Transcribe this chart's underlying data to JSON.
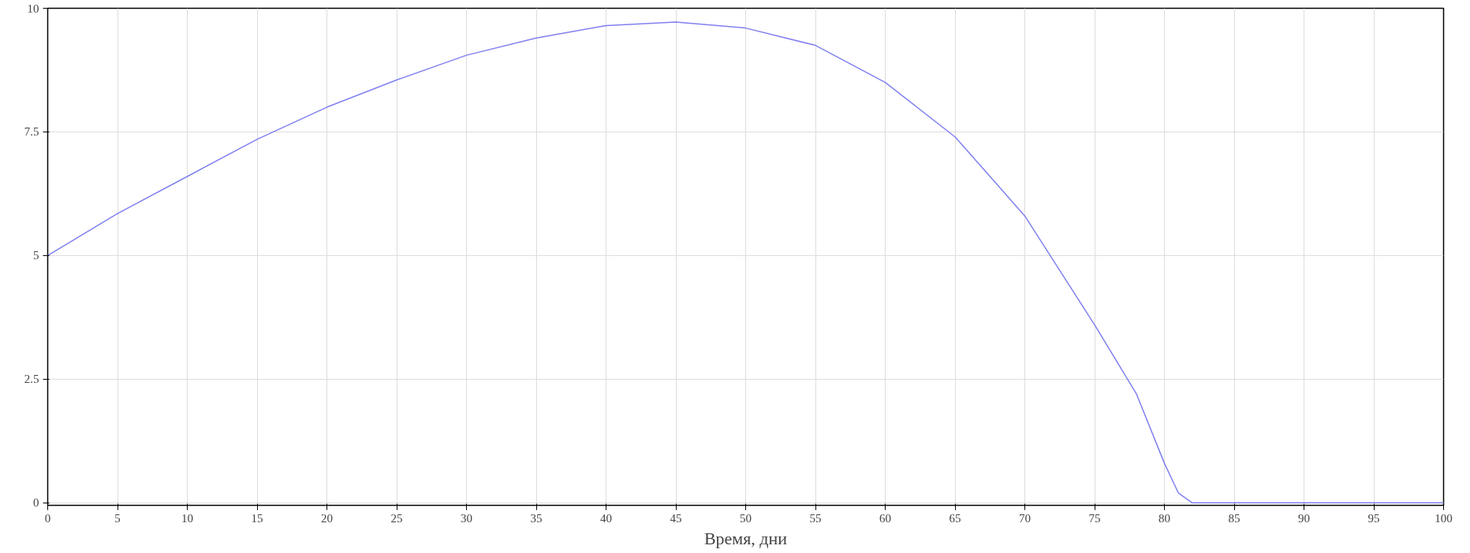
{
  "chart_data": {
    "type": "line",
    "xlabel": "Время, дни",
    "x": [
      0,
      5,
      10,
      15,
      20,
      25,
      30,
      35,
      40,
      45,
      50,
      55,
      60,
      65,
      70,
      75,
      78,
      80,
      81,
      82,
      85,
      90,
      95,
      100
    ],
    "series": [
      {
        "color": "#8080f0",
        "values": [
          5.0,
          5.85,
          6.6,
          7.35,
          8.0,
          8.55,
          9.05,
          9.4,
          9.65,
          9.72,
          9.6,
          9.25,
          8.5,
          7.4,
          5.8,
          3.6,
          2.2,
          0.8,
          0.2,
          0,
          0,
          0,
          0,
          0
        ]
      }
    ],
    "xlim": [
      0,
      100
    ],
    "xticks": [
      0,
      5,
      10,
      15,
      20,
      25,
      30,
      35,
      40,
      45,
      50,
      55,
      60,
      65,
      70,
      75,
      80,
      85,
      90,
      95,
      100
    ],
    "ylim": [
      -0.05,
      10
    ],
    "yticks": [
      0,
      2.5,
      5,
      7.5,
      10
    ],
    "grid": true,
    "marker": "none",
    "line_style": "solid"
  }
}
